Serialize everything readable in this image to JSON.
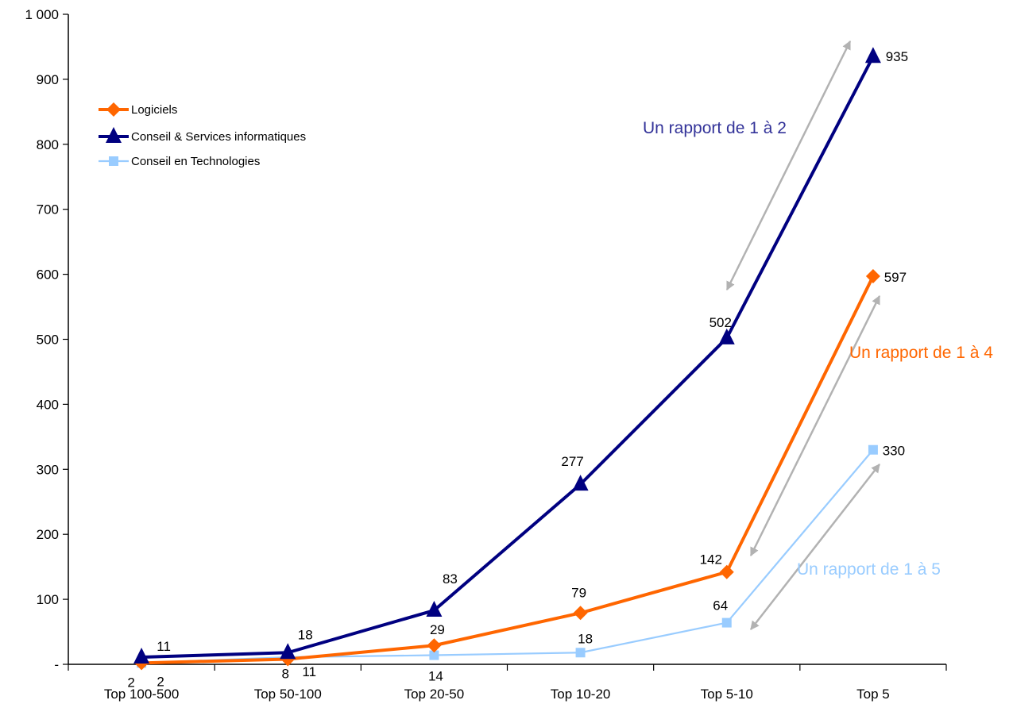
{
  "chart_data": {
    "type": "line",
    "categories": [
      "Top 100-500",
      "Top 50-100",
      "Top 20-50",
      "Top 10-20",
      "Top 5-10",
      "Top 5"
    ],
    "ylim": [
      0,
      1000
    ],
    "yticks": [
      0,
      100,
      200,
      300,
      400,
      500,
      600,
      700,
      800,
      900,
      1000
    ],
    "ytick_labels": [
      "-",
      "100",
      "200",
      "300",
      "400",
      "500",
      "600",
      "700",
      "800",
      "900",
      "1 000"
    ],
    "grid": false,
    "legend_position": "top-left",
    "series": [
      {
        "name": "Logiciels",
        "values": [
          2,
          8,
          29,
          79,
          142,
          597
        ],
        "labels": [
          "2",
          "8",
          "29",
          "79",
          "142",
          "597"
        ],
        "color": "#ff6600",
        "marker": "diamond"
      },
      {
        "name": "Conseil & Services informatiques",
        "values": [
          11,
          18,
          83,
          277,
          502,
          935
        ],
        "labels": [
          "11",
          "18",
          "83",
          "277",
          "502",
          "935"
        ],
        "color": "#000080",
        "marker": "triangle"
      },
      {
        "name": "Conseil en Technologies",
        "values": [
          2,
          11,
          14,
          18,
          64,
          330
        ],
        "labels": [
          "2",
          "11",
          "14",
          "18",
          "64",
          "330"
        ],
        "color": "#99ccff",
        "marker": "square"
      }
    ],
    "annotations": [
      {
        "text": "Un rapport de 1 à 2",
        "color": "#333399",
        "from": [
          4,
          502
        ],
        "to": [
          5,
          935
        ]
      },
      {
        "text": "Un rapport de 1 à 4",
        "color": "#ff6600",
        "from": [
          4,
          142
        ],
        "to": [
          5,
          597
        ]
      },
      {
        "text": "Un rapport de 1 à 5",
        "color": "#99ccff",
        "from": [
          4,
          64
        ],
        "to": [
          5,
          330
        ]
      }
    ],
    "arrow_color": "#b2b2b2"
  }
}
